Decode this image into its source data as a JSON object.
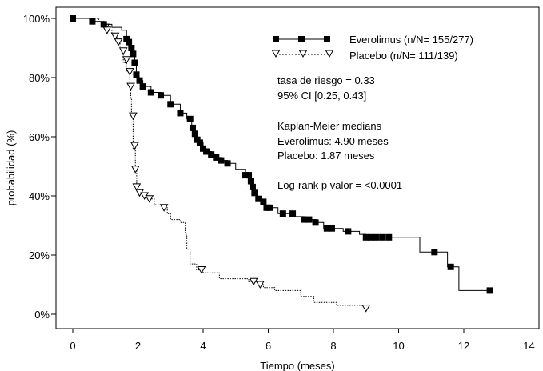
{
  "chart_data": {
    "type": "line",
    "subtype": "kaplan-meier",
    "xlabel": "Tiempo (meses)",
    "ylabel": "probabilidad (%)",
    "xlim": [
      -1,
      15
    ],
    "ylim": [
      -5,
      102
    ],
    "xticks": [
      0,
      2,
      4,
      6,
      8,
      10,
      12,
      14
    ],
    "yticks": [
      0,
      20,
      40,
      60,
      80,
      100
    ],
    "ytick_labels": [
      "0%",
      "20%",
      "40%",
      "60%",
      "80%",
      "100%"
    ],
    "grid": false,
    "legend_position": "top-right",
    "series": [
      {
        "name": "Everolimus (n/N= 155/277)",
        "color": "#000000",
        "line_style": "solid",
        "marker": "filled-square",
        "steps": [
          [
            0,
            100
          ],
          [
            0.6,
            99
          ],
          [
            0.95,
            98
          ],
          [
            1.2,
            97
          ],
          [
            1.5,
            96
          ],
          [
            1.65,
            93
          ],
          [
            1.72,
            92
          ],
          [
            1.8,
            90
          ],
          [
            1.85,
            88
          ],
          [
            1.9,
            85
          ],
          [
            1.95,
            81
          ],
          [
            2.0,
            80
          ],
          [
            2.05,
            79
          ],
          [
            2.15,
            77
          ],
          [
            2.4,
            75
          ],
          [
            2.7,
            74
          ],
          [
            3.0,
            71
          ],
          [
            3.3,
            68
          ],
          [
            3.5,
            66
          ],
          [
            3.65,
            63
          ],
          [
            3.72,
            61
          ],
          [
            3.8,
            59
          ],
          [
            3.9,
            58
          ],
          [
            4.0,
            56
          ],
          [
            4.1,
            55
          ],
          [
            4.25,
            54
          ],
          [
            4.4,
            53
          ],
          [
            4.55,
            52
          ],
          [
            4.75,
            51
          ],
          [
            5.0,
            49
          ],
          [
            5.3,
            47
          ],
          [
            5.45,
            45
          ],
          [
            5.5,
            43
          ],
          [
            5.55,
            41
          ],
          [
            5.65,
            39
          ],
          [
            5.8,
            38
          ],
          [
            5.9,
            36
          ],
          [
            6.3,
            34
          ],
          [
            6.8,
            33
          ],
          [
            7.1,
            32
          ],
          [
            7.5,
            31
          ],
          [
            7.7,
            29
          ],
          [
            8.3,
            28
          ],
          [
            8.8,
            27
          ],
          [
            9.0,
            26
          ],
          [
            10.5,
            26
          ],
          [
            10.65,
            21
          ],
          [
            11.3,
            21
          ],
          [
            11.5,
            16
          ],
          [
            11.8,
            16
          ],
          [
            11.85,
            8
          ],
          [
            12.8,
            8
          ]
        ],
        "markers": [
          [
            0,
            100
          ],
          [
            0.6,
            99
          ],
          [
            0.95,
            98
          ],
          [
            1.65,
            93
          ],
          [
            1.72,
            92
          ],
          [
            1.8,
            90
          ],
          [
            1.85,
            88
          ],
          [
            1.9,
            85
          ],
          [
            1.95,
            81
          ],
          [
            2.05,
            79
          ],
          [
            2.15,
            77
          ],
          [
            2.4,
            75
          ],
          [
            2.7,
            74
          ],
          [
            3.0,
            71
          ],
          [
            3.3,
            68
          ],
          [
            3.6,
            66
          ],
          [
            3.68,
            63
          ],
          [
            3.75,
            61
          ],
          [
            3.82,
            59
          ],
          [
            3.9,
            58
          ],
          [
            4.0,
            56
          ],
          [
            4.1,
            55
          ],
          [
            4.25,
            54
          ],
          [
            4.4,
            53
          ],
          [
            4.55,
            52
          ],
          [
            4.75,
            51
          ],
          [
            5.3,
            47
          ],
          [
            5.4,
            47
          ],
          [
            5.47,
            45
          ],
          [
            5.52,
            43
          ],
          [
            5.58,
            41
          ],
          [
            5.7,
            39
          ],
          [
            5.85,
            38
          ],
          [
            5.95,
            36
          ],
          [
            6.05,
            36
          ],
          [
            6.45,
            34
          ],
          [
            6.75,
            34
          ],
          [
            7.1,
            32
          ],
          [
            7.25,
            32
          ],
          [
            7.45,
            31
          ],
          [
            7.8,
            29
          ],
          [
            7.95,
            29
          ],
          [
            8.45,
            28
          ],
          [
            9.0,
            26
          ],
          [
            9.15,
            26
          ],
          [
            9.3,
            26
          ],
          [
            9.5,
            26
          ],
          [
            9.7,
            26
          ],
          [
            11.1,
            21
          ],
          [
            11.6,
            16
          ],
          [
            12.8,
            8
          ]
        ]
      },
      {
        "name": "Placebo (n/N= 111/139)",
        "color": "#000000",
        "line_style": "dotted",
        "marker": "open-down-triangle",
        "steps": [
          [
            0,
            100
          ],
          [
            0.8,
            99
          ],
          [
            1.0,
            97
          ],
          [
            1.05,
            96
          ],
          [
            1.2,
            95
          ],
          [
            1.35,
            93
          ],
          [
            1.4,
            92
          ],
          [
            1.45,
            90
          ],
          [
            1.5,
            88
          ],
          [
            1.55,
            85
          ],
          [
            1.65,
            82
          ],
          [
            1.75,
            77
          ],
          [
            1.78,
            73
          ],
          [
            1.8,
            67
          ],
          [
            1.85,
            56
          ],
          [
            1.92,
            49
          ],
          [
            1.96,
            43
          ],
          [
            2.0,
            42
          ],
          [
            2.1,
            41
          ],
          [
            2.3,
            39
          ],
          [
            2.5,
            37
          ],
          [
            2.8,
            36
          ],
          [
            2.9,
            34
          ],
          [
            3.0,
            32
          ],
          [
            3.3,
            31
          ],
          [
            3.45,
            27
          ],
          [
            3.5,
            22
          ],
          [
            3.6,
            17
          ],
          [
            3.8,
            15
          ],
          [
            4.0,
            14
          ],
          [
            4.5,
            12
          ],
          [
            5.0,
            12
          ],
          [
            5.4,
            11
          ],
          [
            5.75,
            10
          ],
          [
            5.85,
            9
          ],
          [
            6.2,
            8
          ],
          [
            7.0,
            6
          ],
          [
            7.4,
            4
          ],
          [
            8.1,
            3
          ],
          [
            9.0,
            2
          ]
        ],
        "markers": [
          [
            1.0,
            97
          ],
          [
            1.05,
            96
          ],
          [
            1.3,
            94
          ],
          [
            1.4,
            92
          ],
          [
            1.55,
            89
          ],
          [
            1.65,
            86
          ],
          [
            1.75,
            82
          ],
          [
            1.78,
            77
          ],
          [
            1.85,
            67
          ],
          [
            1.9,
            57
          ],
          [
            1.92,
            49
          ],
          [
            1.96,
            43
          ],
          [
            2.05,
            41
          ],
          [
            2.2,
            40
          ],
          [
            2.35,
            39
          ],
          [
            2.8,
            36
          ],
          [
            3.95,
            15
          ],
          [
            5.55,
            11
          ],
          [
            5.75,
            10
          ],
          [
            9.0,
            2
          ]
        ]
      }
    ],
    "annotations": [
      "tasa de riesgo = 0.33",
      "95% CI [0.25, 0.43]",
      "Kaplan-Meier medians",
      "Everolimus: 4.90 meses",
      "Placebo: 1.87 meses",
      "Log-rank p valor = <0.0001"
    ]
  }
}
